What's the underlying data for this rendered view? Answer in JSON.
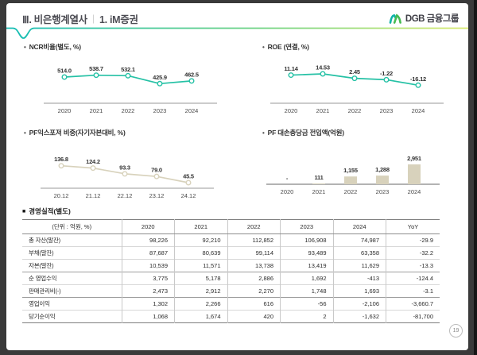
{
  "header": {
    "section_title": "Ⅲ. 비은행계열사",
    "separator": "|",
    "page_subtitle": "1. iM증권",
    "logo_text": "DGB 금융그룹"
  },
  "bullets": {
    "dot": "•",
    "square": "■"
  },
  "colors": {
    "teal_line": "#25c1a5",
    "beige_line": "#d8d2bc",
    "divider_gradient": [
      "#12bcb4",
      "#6ed382",
      "#d9ea6e"
    ],
    "logo_teal": "#0fb3a8",
    "logo_green": "#45bb51"
  },
  "chart_data": [
    {
      "type": "line",
      "title": "NCR비율(별도, %)",
      "categories": [
        "2020",
        "2021",
        "2022",
        "2023",
        "2024"
      ],
      "values": [
        514.0,
        538.7,
        532.1,
        425.9,
        462.5
      ],
      "labels": [
        "514.0",
        "538.7",
        "532.1",
        "425.9",
        "462.5"
      ],
      "color": "#25c1a5",
      "legend": "none",
      "grid": "off"
    },
    {
      "type": "line",
      "title": "ROE (연결, %)",
      "categories": [
        "2020",
        "2021",
        "2022",
        "2023",
        "2024"
      ],
      "values": [
        11.14,
        14.53,
        2.45,
        -1.22,
        -16.12
      ],
      "labels": [
        "11.14",
        "14.53",
        "2.45",
        "-1.22",
        "-16.12"
      ],
      "color": "#25c1a5",
      "legend": "none",
      "grid": "off"
    },
    {
      "type": "line",
      "title": "PF익스포져 비중(자기자본대비, %)",
      "categories": [
        "20.12",
        "21.12",
        "22.12",
        "23.12",
        "24.12"
      ],
      "values": [
        136.8,
        124.2,
        93.3,
        79.0,
        45.5
      ],
      "labels": [
        "136.8",
        "124.2",
        "93.3",
        "79.0",
        "45.5"
      ],
      "color": "#d8d2bc",
      "legend": "none",
      "grid": "off"
    },
    {
      "type": "bar",
      "title": "PF 대손충당금 전입액(억원)",
      "categories": [
        "2020",
        "2021",
        "2022",
        "2023",
        "2024"
      ],
      "values": [
        0,
        111,
        1155,
        1288,
        2951
      ],
      "labels": [
        "-",
        "111",
        "1,155",
        "1,288",
        "2,951"
      ],
      "color": "#d8d2bc",
      "legend": "none",
      "grid": "off"
    }
  ],
  "table": {
    "title": "경영실적(별도)",
    "unit_header": "(단위 : 억원, %)",
    "columns": [
      "2020",
      "2021",
      "2022",
      "2023",
      "2024",
      "YoY"
    ],
    "rows": [
      {
        "label": "총 자산(말잔)",
        "values": [
          "98,226",
          "92,210",
          "112,852",
          "106,908",
          "74,987",
          "-29.9"
        ]
      },
      {
        "label": "부채(말잔)",
        "values": [
          "87,687",
          "80,639",
          "99,114",
          "93,489",
          "63,358",
          "-32.2"
        ]
      },
      {
        "label": "자본(말잔)",
        "values": [
          "10,539",
          "11,571",
          "13,738",
          "13,419",
          "11,629",
          "-13.3"
        ]
      },
      {
        "label": "순 영업수익",
        "values": [
          "3,775",
          "5,178",
          "2,886",
          "1,692",
          "-413",
          "-124.4"
        ]
      },
      {
        "label": "판매관리비(-)",
        "values": [
          "2,473",
          "2,912",
          "2,270",
          "1,748",
          "1,693",
          "-3.1"
        ]
      },
      {
        "label": "영업이익",
        "values": [
          "1,302",
          "2,266",
          "616",
          "-56",
          "-2,106",
          "-3,660.7"
        ]
      },
      {
        "label": "당기순이익",
        "values": [
          "1,068",
          "1,674",
          "420",
          "2",
          "-1,632",
          "-81,700"
        ]
      }
    ]
  },
  "page": {
    "number": "19"
  }
}
